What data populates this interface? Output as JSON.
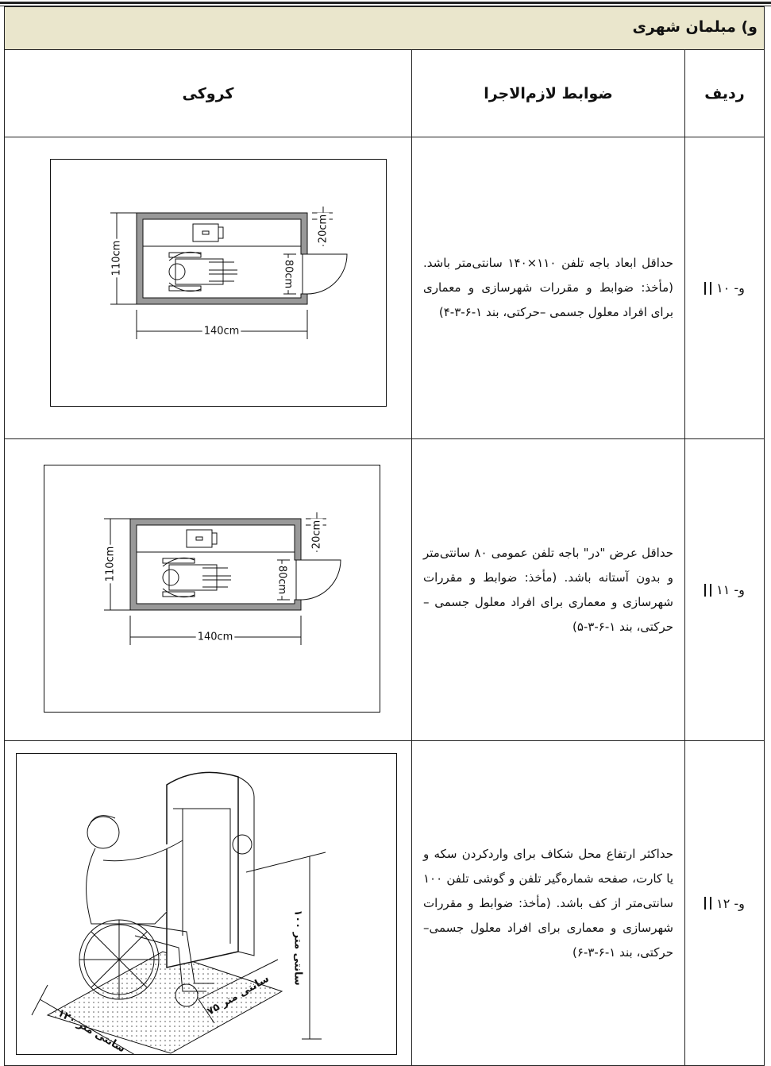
{
  "header": {
    "title": "و) مبلمان شهری"
  },
  "table": {
    "columns": [
      "ردیف",
      "ضوابط لازم‌الاجرا",
      "کروکی"
    ],
    "rows": [
      {
        "number": "و- ۱۰",
        "text": "حداقل ابعاد باجه تلفن ۱۱۰×۱۴۰ سانتی‌متر باشد. (مأخذ: ضوابط و مقررات شهرسازی و معماری برای افراد معلول جسمی –حرکتی، بند ۱-۶-۳-۴)",
        "figure": {
          "labels": [
            "110cm",
            "140cm",
            "20cm",
            "80cm"
          ]
        }
      },
      {
        "number": "و- ۱۱",
        "text": "حداقل عرض \"در\" باجه تلفن عمومی ۸۰ سانتی‌متر و بدون آستانه باشد. (مأخذ: ضوابط و مقررات شهرسازی و معماری برای افراد معلول جسمی –حرکتی، بند ۱-۶-۳-۵)",
        "figure": {
          "labels": [
            "110cm",
            "140cm",
            "20cm",
            "80cm"
          ]
        }
      },
      {
        "number": "و- ۱۲",
        "text": "حداکثر ارتفاع محل شکاف برای واردکردن سکه و یا کارت، صفحه شماره‌گیر تلفن و گوشی تلفن ۱۰۰ سانتی‌متر از کف باشد. (مأخذ: ضوابط و مقررات شهرسازی و معماری برای افراد معلول جسمی–حرکتی، بند ۱-۶-۳-۶)",
        "figure": {
          "labels": [
            "۱۰۰ سانتی متر",
            "۱۲۰ سانتی متر",
            "۷۵ سانتی متر"
          ]
        }
      }
    ]
  }
}
